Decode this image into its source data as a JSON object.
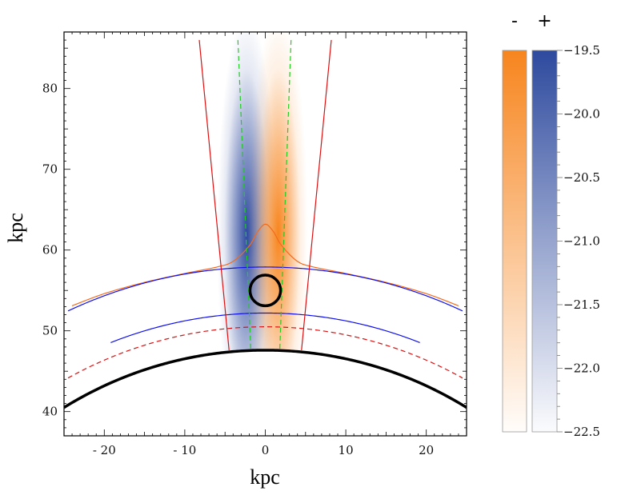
{
  "chart_data": {
    "type": "heatmap",
    "xlabel": "kpc",
    "ylabel": "kpc",
    "xlim": [
      -25,
      25
    ],
    "ylim": [
      37,
      87
    ],
    "xticks": [
      -20,
      -10,
      0,
      10,
      20
    ],
    "xtick_labels": [
      "- 20",
      "- 10",
      "0",
      "10",
      "20"
    ],
    "yticks": [
      40,
      50,
      60,
      70,
      80
    ],
    "ytick_labels": [
      "40",
      "50",
      "60",
      "70",
      "80"
    ],
    "grid": false,
    "density_maps": [
      {
        "sign": "+",
        "color": "#2e4a9e",
        "center_x": -2.3,
        "center_y": 62,
        "sigma_x": 1.6,
        "sigma_y": 17,
        "y_min": 47.5
      },
      {
        "sign": "-",
        "color": "#f7851e",
        "center_x": 1.6,
        "center_y": 62,
        "sigma_x": 1.6,
        "sigma_y": 17,
        "y_min": 47.5
      }
    ],
    "curves": [
      {
        "name": "orange_profile",
        "color": "#f26b1d",
        "style": "solid",
        "points": [
          [
            -24,
            53.1
          ],
          [
            -20,
            54.6
          ],
          [
            -15,
            56.0
          ],
          [
            -10,
            57.1
          ],
          [
            -6,
            57.9
          ],
          [
            -4,
            58.6
          ],
          [
            -2,
            60.5
          ],
          [
            -1,
            62.2
          ],
          [
            0,
            63.2
          ],
          [
            1,
            62.3
          ],
          [
            2,
            60.6
          ],
          [
            4,
            58.6
          ],
          [
            6,
            57.9
          ],
          [
            10,
            57.1
          ],
          [
            15,
            56.0
          ],
          [
            20,
            54.6
          ],
          [
            24,
            53.1
          ]
        ]
      },
      {
        "name": "blue_outer_arc",
        "color": "#1111ee",
        "style": "solid",
        "center": [
          0,
          0
        ],
        "radius": 57.9,
        "x_range": [
          -24.5,
          24.5
        ]
      },
      {
        "name": "blue_inner_arc",
        "color": "#1111ee",
        "style": "solid",
        "center": [
          0,
          0
        ],
        "radius": 52.2,
        "x_range": [
          -19.2,
          19.2
        ]
      },
      {
        "name": "red_dashed_arc",
        "color": "#dd1111",
        "style": "dashed",
        "center": [
          0,
          0
        ],
        "radius": 50.5,
        "x_range": [
          -24.5,
          24.5
        ]
      },
      {
        "name": "black_base_arc",
        "color": "#000000",
        "style": "thick",
        "center": [
          0,
          0
        ],
        "radius": 47.6,
        "x_range": [
          -25,
          25
        ]
      },
      {
        "name": "red_line_left",
        "color": "#dd1111",
        "style": "solid",
        "points": [
          [
            -8.2,
            86
          ],
          [
            -4.5,
            47.6
          ]
        ]
      },
      {
        "name": "red_line_right",
        "color": "#dd1111",
        "style": "solid",
        "points": [
          [
            8.2,
            86
          ],
          [
            4.5,
            47.6
          ]
        ]
      },
      {
        "name": "green_dashed_left",
        "color": "#22cc22",
        "style": "dashed",
        "points": [
          [
            -3.4,
            86
          ],
          [
            -1.8,
            47.6
          ]
        ]
      },
      {
        "name": "green_dashed_right",
        "color": "#22cc22",
        "style": "dashed",
        "points": [
          [
            3.2,
            86
          ],
          [
            1.8,
            47.6
          ]
        ]
      }
    ],
    "marker": {
      "shape": "circle",
      "center": [
        0,
        55
      ],
      "radius": 1.9,
      "color": "#000000"
    },
    "colorbar": {
      "labels": [
        "-",
        "+"
      ],
      "colors": [
        "#f7851e",
        "#2e4a9e"
      ],
      "range": [
        -22.5,
        -19.5
      ],
      "major_ticks": [
        -19.5,
        -20.0,
        -20.5,
        -21.0,
        -21.5,
        -22.0,
        -22.5
      ],
      "tick_labels": [
        "−19.5",
        "−20.0",
        "−20.5",
        "−21.0",
        "−21.5",
        "−22.0",
        "−22.5"
      ]
    }
  }
}
